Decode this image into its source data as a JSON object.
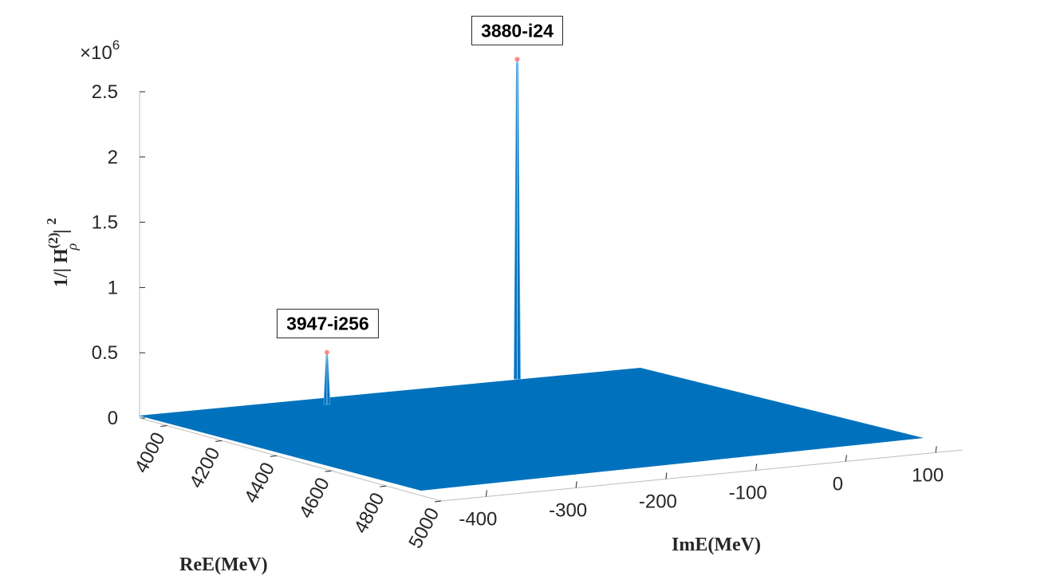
{
  "chart_data": {
    "type": "surface",
    "exponent_label": "×10",
    "exponent_power": "6",
    "zlabel_text": "1/| H",
    "zlabel_sup": "(2)",
    "zlabel_sub": "ρ",
    "zlabel_tail": "| ",
    "zlabel_pow": "2",
    "xlabel": "ReE(MeV)",
    "ylabel": "ImE(MeV)",
    "z_ticks": [
      "0",
      "0.5",
      "1",
      "1.5",
      "2",
      "2.5"
    ],
    "z_values": [
      0,
      0.5,
      1,
      1.5,
      2,
      2.5
    ],
    "x_ticks": [
      "4000",
      "4200",
      "4400",
      "4600",
      "4800",
      "5000"
    ],
    "x_values": [
      4000,
      4200,
      4400,
      4600,
      4800,
      5000
    ],
    "y_ticks": [
      "-400",
      "-300",
      "-200",
      "-100",
      "0",
      "100"
    ],
    "y_values": [
      -400,
      -300,
      -200,
      -100,
      0,
      100
    ],
    "xlim": [
      3900,
      5000
    ],
    "ylim": [
      -450,
      130
    ],
    "zlim": [
      0,
      2.5
    ],
    "surface_color": "#0072bd",
    "peak_color": "#ff6b6b",
    "peaks": [
      {
        "label": "3880-i24",
        "re": 3880,
        "im": -24,
        "value": 2.45
      },
      {
        "label": "3947-i256",
        "re": 3947,
        "im": -256,
        "value": 0.4
      }
    ]
  }
}
